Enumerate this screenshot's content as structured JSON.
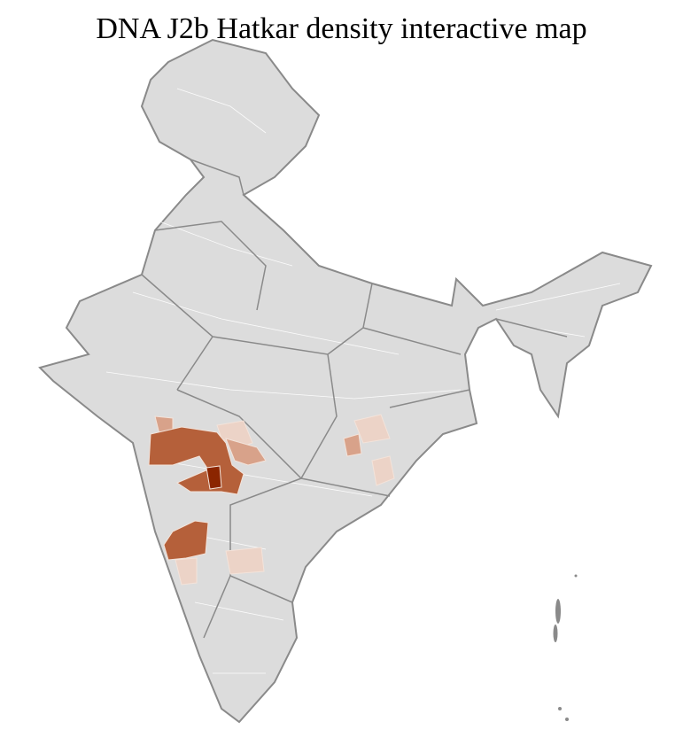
{
  "title": "DNA J2b Hatkar density interactive map",
  "colors": {
    "no_data": "#dcdcdc",
    "border": "#8a8a8a",
    "district_line": "#ffffff",
    "very_low": "#ecd3c7",
    "low": "#d8a28a",
    "medium": "#b5603a",
    "high": "#8b2500"
  }
}
